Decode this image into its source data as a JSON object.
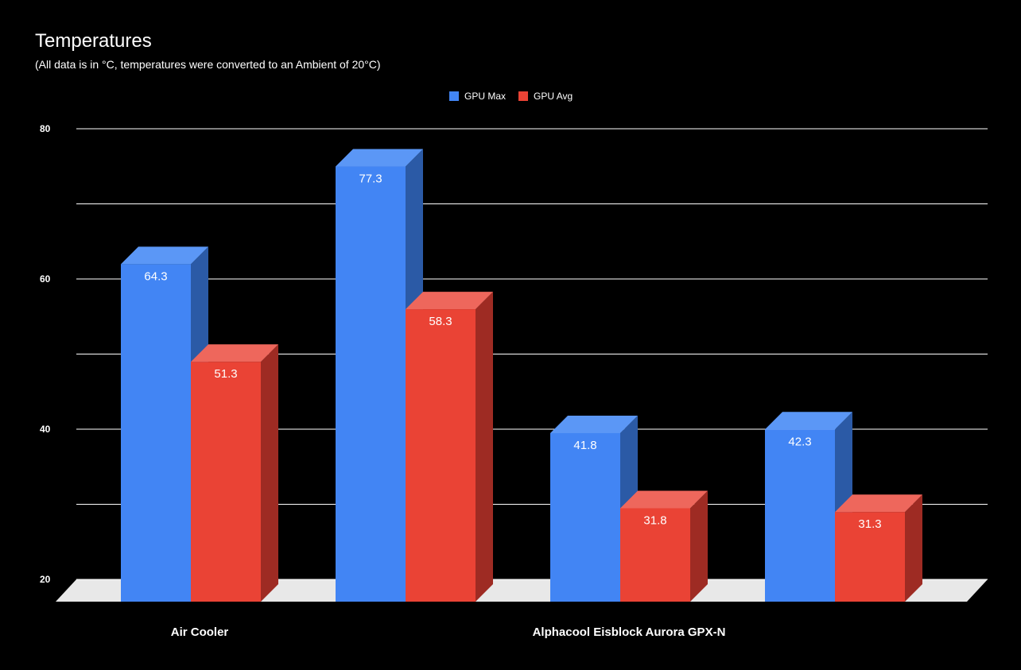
{
  "chart_data": {
    "type": "bar",
    "title": "Temperatures",
    "subtitle": "(All data is in °C, temperatures were converted to an Ambient of 20°C)",
    "categories": [
      "Air Cooler",
      "",
      "Alphacool Eisblock Aurora GPX-N",
      ""
    ],
    "series": [
      {
        "name": "GPU Max",
        "values": [
          64.3,
          77.3,
          41.8,
          42.3
        ],
        "color": "#4285f4",
        "side_color": "#2b5aa6",
        "top_color": "#5b97f6"
      },
      {
        "name": "GPU Avg",
        "values": [
          51.3,
          58.3,
          31.8,
          31.3
        ],
        "color": "#ea4335",
        "side_color": "#9e2b23",
        "top_color": "#ee675c"
      }
    ],
    "ylim": [
      20,
      80
    ],
    "yticks": [
      "20",
      "40",
      "60",
      "80"
    ],
    "xlabel": "",
    "ylabel": "",
    "grid": true,
    "legend_position": "top-center",
    "style": "3d"
  }
}
